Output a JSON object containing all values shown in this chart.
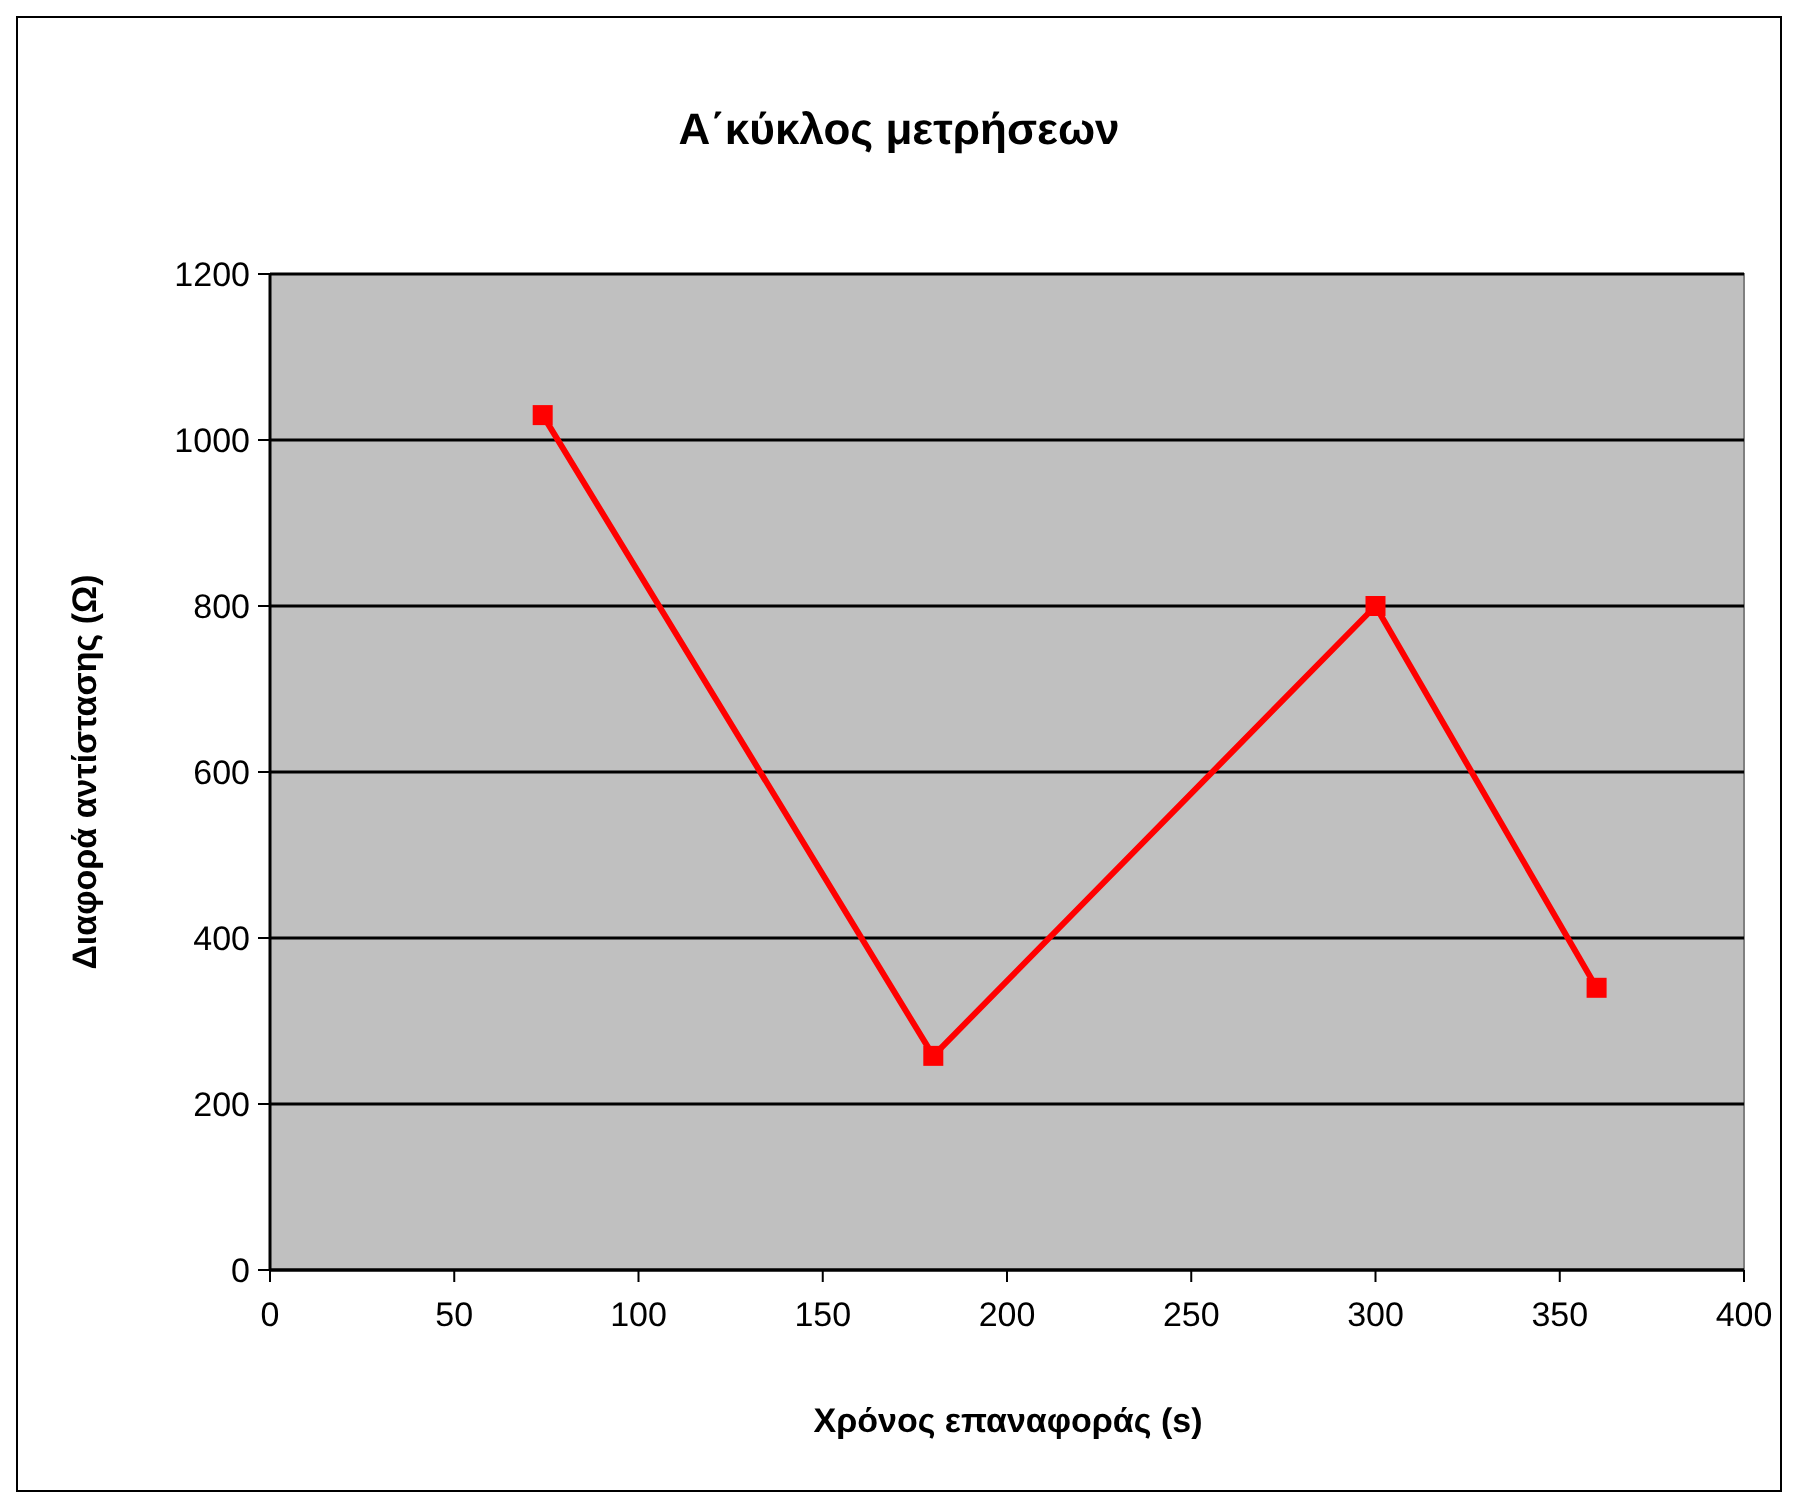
{
  "chart_data": {
    "type": "line",
    "title": "Α΄κύκλος μετρήσεων",
    "xlabel": "Χρόνος επαναφοράς (s)",
    "ylabel": "Διαφορά αντίστασης (Ω)",
    "x": [
      74,
      180,
      300,
      360
    ],
    "series": [
      {
        "color": "#ff0000",
        "values": [
          1030,
          258,
          800,
          340
        ]
      }
    ],
    "xlim": [
      0,
      400
    ],
    "xticks": [
      0,
      50,
      100,
      150,
      200,
      250,
      300,
      350,
      400
    ],
    "ylim": [
      0,
      1200
    ],
    "yticks": [
      0,
      200,
      400,
      600,
      800,
      1000,
      1200
    ],
    "grid": "y",
    "marker": "square",
    "line_style": "solid"
  }
}
